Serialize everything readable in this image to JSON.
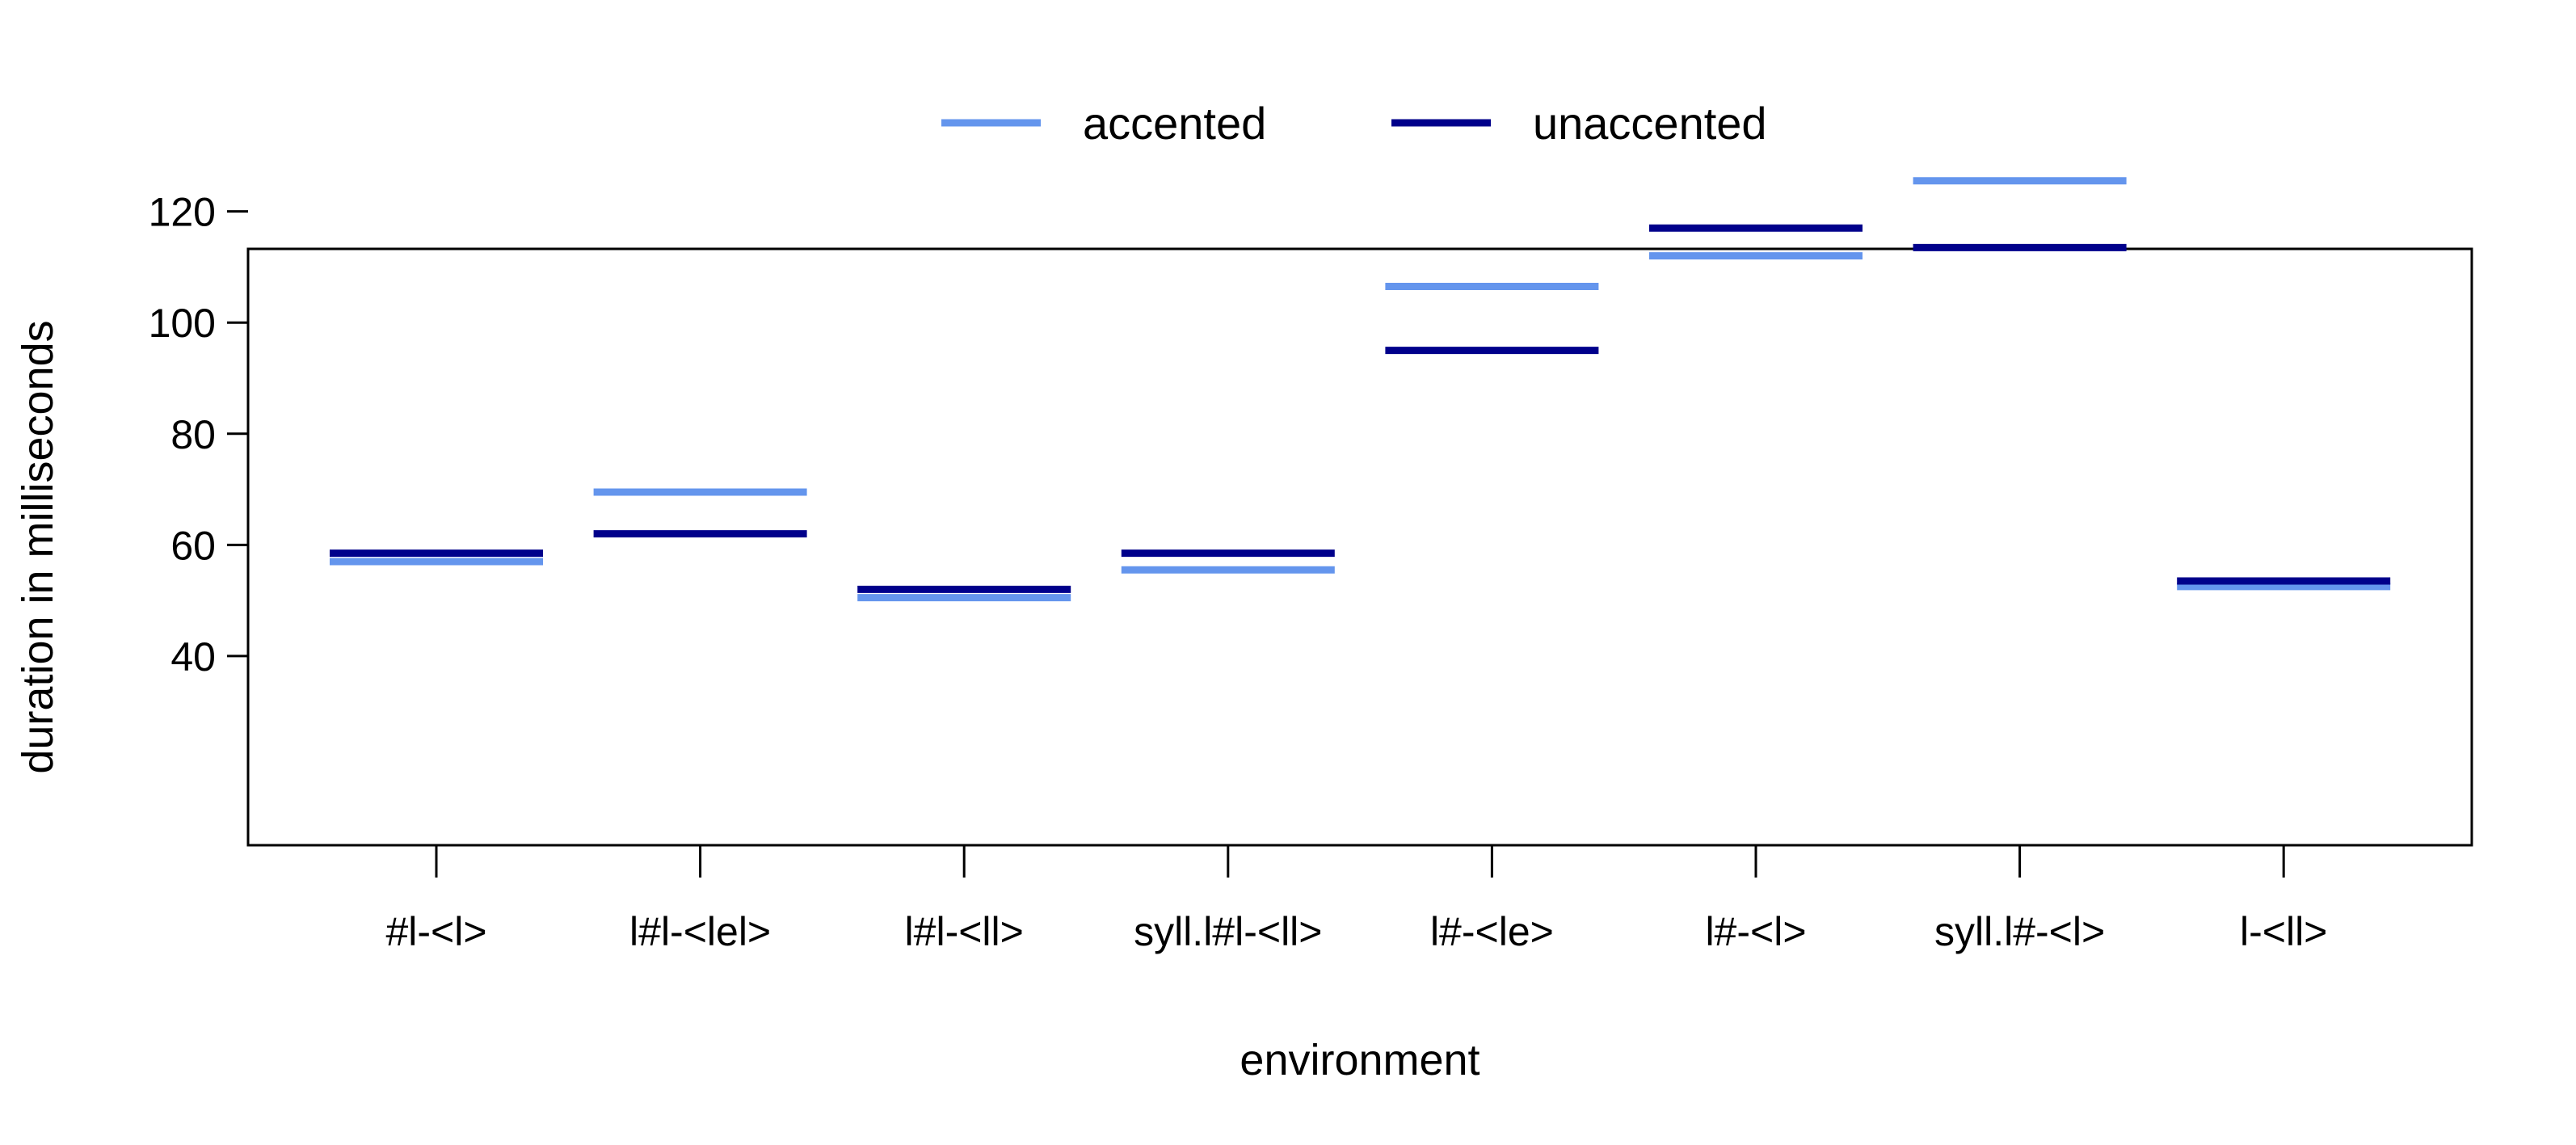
{
  "chart_data": {
    "type": "line",
    "xlabel": "environment",
    "ylabel": "duration in milliseconds",
    "categories": [
      "#l-<l>",
      "l#l-<lel>",
      "l#l-<ll>",
      "syll.l#l-<ll>",
      "l#-<le>",
      "l#-<l>",
      "syll.l#-<l>",
      "l-<ll>"
    ],
    "y_ticks": [
      40,
      60,
      80,
      100,
      120
    ],
    "ylim": [
      25,
      133
    ],
    "grid": false,
    "legend_position": "top",
    "series": [
      {
        "name": "accented",
        "color": "#6495ED",
        "values": [
          57,
          69.5,
          50.5,
          55.5,
          106.5,
          112,
          125.5,
          52.5
        ]
      },
      {
        "name": "unaccented",
        "color": "#00008B",
        "values": [
          58.5,
          62,
          52,
          58.5,
          95,
          117,
          113.5,
          53.5
        ]
      }
    ]
  }
}
